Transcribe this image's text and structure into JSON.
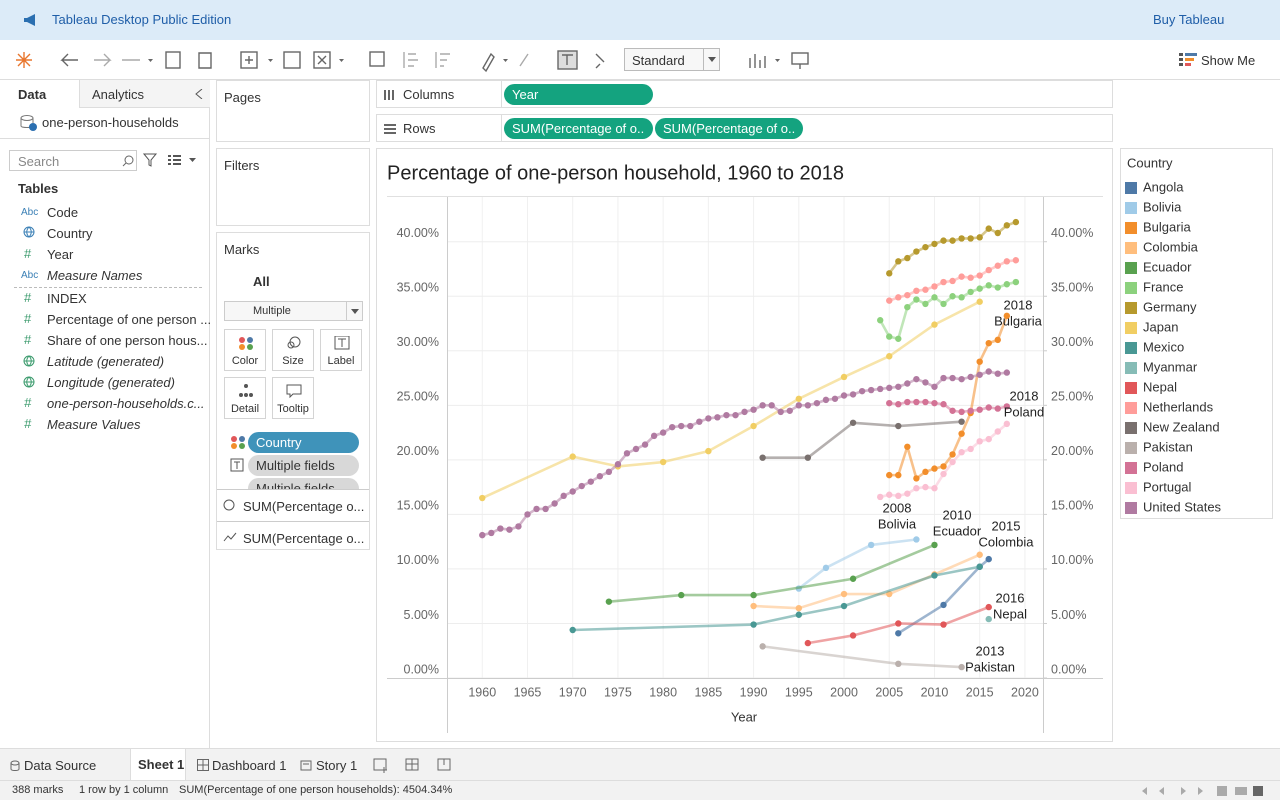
{
  "app": {
    "title": "Tableau Desktop Public Edition",
    "buy": "Buy Tableau"
  },
  "toolbar": {
    "mark_type": "Standard",
    "show_me": "Show Me"
  },
  "data_pane": {
    "tabs": [
      "Data",
      "Analytics"
    ],
    "source": "one-person-households",
    "search": "Search",
    "tables_heading": "Tables",
    "fields": [
      {
        "icon": "Abc",
        "name": "Code"
      },
      {
        "name": "Country"
      },
      {
        "icon": "#",
        "name": "Year"
      },
      {
        "icon": "Abc",
        "name": "Measure Names"
      },
      {
        "icon": "#",
        "name": "INDEX"
      },
      {
        "icon": "#",
        "name": "Percentage of one person ..."
      },
      {
        "icon": "#",
        "name": "Share of one person hous..."
      },
      {
        "name": "Latitude (generated)"
      },
      {
        "name": "Longitude (generated)"
      },
      {
        "icon": "#",
        "name": "one-person-households.c..."
      },
      {
        "icon": "#",
        "name": "Measure Values"
      }
    ]
  },
  "pages": "Pages",
  "filters": "Filters",
  "marks": {
    "title": "Marks",
    "all": "All",
    "type": "Multiple",
    "buttons": [
      "Color",
      "Size",
      "Label",
      "Detail",
      "Tooltip"
    ],
    "pills": [
      "Country",
      "Multiple fields",
      "Multiple fields"
    ],
    "measures": [
      "SUM(Percentage o...",
      "SUM(Percentage o..."
    ]
  },
  "shelves": {
    "columns_label": "Columns",
    "columns": [
      "Year"
    ],
    "rows_label": "Rows",
    "rows": [
      "SUM(Percentage of o..",
      "SUM(Percentage of o.."
    ]
  },
  "legend_title": "Country",
  "tabs": [
    "Data Source",
    "Sheet 1",
    "Dashboard 1",
    "Story 1"
  ],
  "status": [
    "388 marks",
    "1 row by 1 column",
    "SUM(Percentage of one person households): 4504.34%"
  ],
  "chart_data": {
    "type": "line",
    "title": "Percentage of one-person household, 1960 to 2018",
    "x_label": "Year",
    "xlim": [
      1956.1,
      2022
    ],
    "xticks": [
      1960,
      1965,
      1970,
      1975,
      1980,
      1985,
      1990,
      1995,
      2000,
      2005,
      2010,
      2015,
      2020
    ],
    "ylim": [
      0,
      44.1
    ],
    "yticks": [
      {
        "value": 0,
        "label": "0.00%"
      },
      {
        "value": 5,
        "label": "5.00%"
      },
      {
        "value": 10,
        "label": "10.00%"
      },
      {
        "value": 15,
        "label": "15.00%"
      },
      {
        "value": 20,
        "label": "20.00%"
      },
      {
        "value": 25,
        "label": "25.00%"
      },
      {
        "value": 30,
        "label": "30.00%"
      },
      {
        "value": 35,
        "label": "35.00%"
      },
      {
        "value": 40,
        "label": "40.00%"
      }
    ],
    "y2lim": [
      0,
      44.1
    ],
    "y2ticks": [
      {
        "value": 0,
        "label": "0.00%"
      },
      {
        "value": 5,
        "label": "5.00%"
      },
      {
        "value": 10,
        "label": "10.00%"
      },
      {
        "value": 15,
        "label": "15.00%"
      },
      {
        "value": 20,
        "label": "20.00%"
      },
      {
        "value": 25,
        "label": "25.00%"
      },
      {
        "value": 30,
        "label": "30.00%"
      },
      {
        "value": 35,
        "label": "35.00%"
      },
      {
        "value": 40,
        "label": "40.00%"
      }
    ],
    "grid": true,
    "series": [
      {
        "name": "Angola",
        "color": "#4e79a7",
        "x": [
          2006,
          2011,
          2015,
          2016
        ],
        "values": [
          4.1,
          6.7,
          10.2,
          10.9
        ]
      },
      {
        "name": "Bolivia",
        "color": "#a0cbe8",
        "x": [
          1995,
          1998,
          2003,
          2008
        ],
        "values": [
          8.2,
          10.1,
          12.2,
          12.7
        ]
      },
      {
        "name": "Bulgaria",
        "color": "#f28e2b",
        "x": [
          2005,
          2006,
          2007,
          2008,
          2009,
          2010,
          2011,
          2012,
          2013,
          2014,
          2015,
          2016,
          2017,
          2018
        ],
        "values": [
          18.6,
          18.6,
          21.2,
          18.3,
          18.9,
          19.2,
          19.4,
          20.5,
          22.4,
          24.3,
          29.0,
          30.7,
          31.0,
          33.2
        ]
      },
      {
        "name": "Colombia",
        "color": "#ffbe7d",
        "x": [
          1990,
          1995,
          2000,
          2005,
          2010,
          2015
        ],
        "values": [
          6.6,
          6.4,
          7.7,
          7.7,
          9.5,
          11.3
        ]
      },
      {
        "name": "Ecuador",
        "color": "#59a14f",
        "x": [
          1974,
          1982,
          1990,
          2001,
          2010
        ],
        "values": [
          7.0,
          7.6,
          7.6,
          9.1,
          12.2
        ]
      },
      {
        "name": "France",
        "color": "#8cd17d",
        "x": [
          2004,
          2005,
          2006,
          2007,
          2008,
          2009,
          2010,
          2011,
          2012,
          2013,
          2014,
          2015,
          2016,
          2017,
          2018,
          2019
        ],
        "values": [
          32.8,
          31.3,
          31.1,
          34.0,
          34.7,
          34.3,
          34.9,
          34.3,
          35.0,
          34.9,
          35.4,
          35.7,
          36.0,
          35.8,
          36.1,
          36.3
        ]
      },
      {
        "name": "Germany",
        "color": "#b6992d",
        "x": [
          2005,
          2006,
          2007,
          2008,
          2009,
          2010,
          2011,
          2012,
          2013,
          2014,
          2015,
          2016,
          2017,
          2018,
          2019
        ],
        "values": [
          37.1,
          38.2,
          38.5,
          39.1,
          39.5,
          39.8,
          40.1,
          40.1,
          40.3,
          40.3,
          40.4,
          41.2,
          40.8,
          41.5,
          41.8
        ]
      },
      {
        "name": "Japan",
        "color": "#f1ce63",
        "x": [
          1960,
          1970,
          1975,
          1980,
          1985,
          1990,
          1995,
          2000,
          2005,
          2010,
          2015
        ],
        "values": [
          16.5,
          20.3,
          19.4,
          19.8,
          20.8,
          23.1,
          25.6,
          27.6,
          29.5,
          32.4,
          34.5
        ]
      },
      {
        "name": "Mexico",
        "color": "#499894",
        "x": [
          1970,
          1990,
          1995,
          2000,
          2010,
          2015
        ],
        "values": [
          4.4,
          4.9,
          5.8,
          6.6,
          9.4,
          10.2
        ]
      },
      {
        "name": "Myanmar",
        "color": "#86bcb6",
        "x": [
          2016
        ],
        "values": [
          5.4
        ]
      },
      {
        "name": "Nepal",
        "color": "#e15759",
        "x": [
          1996,
          2001,
          2006,
          2011,
          2016
        ],
        "values": [
          3.2,
          3.9,
          5.0,
          4.9,
          6.5
        ]
      },
      {
        "name": "Netherlands",
        "color": "#ff9d9a",
        "x": [
          2005,
          2006,
          2007,
          2008,
          2009,
          2010,
          2011,
          2012,
          2013,
          2014,
          2015,
          2016,
          2017,
          2018,
          2019
        ],
        "values": [
          34.6,
          34.9,
          35.1,
          35.5,
          35.6,
          35.9,
          36.3,
          36.4,
          36.8,
          36.7,
          36.9,
          37.4,
          37.8,
          38.2,
          38.3
        ]
      },
      {
        "name": "New Zealand",
        "color": "#79706e",
        "x": [
          1991,
          1996,
          2001,
          2006,
          2013
        ],
        "values": [
          20.2,
          20.2,
          23.4,
          23.1,
          23.5
        ]
      },
      {
        "name": "Pakistan",
        "color": "#bab0ac",
        "x": [
          1991,
          2006,
          2013
        ],
        "values": [
          2.9,
          1.3,
          1.0
        ]
      },
      {
        "name": "Poland",
        "color": "#d37295",
        "x": [
          2005,
          2006,
          2007,
          2008,
          2009,
          2010,
          2011,
          2012,
          2013,
          2014,
          2015,
          2016,
          2017,
          2018
        ],
        "values": [
          25.2,
          25.1,
          25.3,
          25.3,
          25.3,
          25.2,
          25.1,
          24.5,
          24.4,
          24.5,
          24.6,
          24.8,
          24.7,
          24.9
        ]
      },
      {
        "name": "Portugal",
        "color": "#fabfd2",
        "x": [
          2004,
          2005,
          2006,
          2007,
          2008,
          2009,
          2010,
          2011,
          2012,
          2013,
          2014,
          2015,
          2016,
          2017,
          2018
        ],
        "values": [
          16.6,
          16.8,
          16.7,
          16.9,
          17.4,
          17.5,
          17.4,
          18.7,
          19.8,
          20.7,
          21.0,
          21.7,
          21.9,
          22.6,
          23.3
        ]
      },
      {
        "name": "United States",
        "color": "#b07aa1",
        "x": [
          1960,
          1961,
          1962,
          1963,
          1964,
          1965,
          1966,
          1967,
          1968,
          1969,
          1970,
          1971,
          1972,
          1973,
          1974,
          1975,
          1976,
          1977,
          1978,
          1979,
          1980,
          1981,
          1982,
          1983,
          1984,
          1985,
          1986,
          1987,
          1988,
          1989,
          1990,
          1991,
          1992,
          1993,
          1994,
          1995,
          1996,
          1997,
          1998,
          1999,
          2000,
          2001,
          2002,
          2003,
          2004,
          2005,
          2006,
          2007,
          2008,
          2009,
          2010,
          2011,
          2012,
          2013,
          2014,
          2015,
          2016,
          2017,
          2018
        ],
        "values": [
          13.1,
          13.3,
          13.7,
          13.6,
          13.9,
          15.0,
          15.5,
          15.5,
          16.0,
          16.7,
          17.1,
          17.6,
          18.0,
          18.5,
          18.9,
          19.6,
          20.6,
          21.0,
          21.4,
          22.2,
          22.5,
          23.0,
          23.1,
          23.1,
          23.5,
          23.8,
          23.9,
          24.1,
          24.1,
          24.4,
          24.6,
          25.0,
          25.0,
          24.4,
          24.5,
          25.0,
          25.0,
          25.2,
          25.5,
          25.6,
          25.9,
          26.0,
          26.3,
          26.4,
          26.5,
          26.6,
          26.7,
          27.0,
          27.4,
          27.1,
          26.7,
          27.5,
          27.5,
          27.4,
          27.6,
          27.8,
          28.1,
          27.9,
          28.0
        ]
      }
    ],
    "annotations": [
      {
        "year": "2008",
        "country": "Bolivia"
      },
      {
        "year": "2010",
        "country": "Ecuador"
      },
      {
        "year": "2015",
        "country": "Colombia"
      },
      {
        "year": "2016",
        "country": "Nepal"
      },
      {
        "year": "2013",
        "country": "Pakistan"
      },
      {
        "year": "2018",
        "country": "Bulgaria"
      },
      {
        "year": "2018",
        "country": "Poland"
      }
    ]
  }
}
